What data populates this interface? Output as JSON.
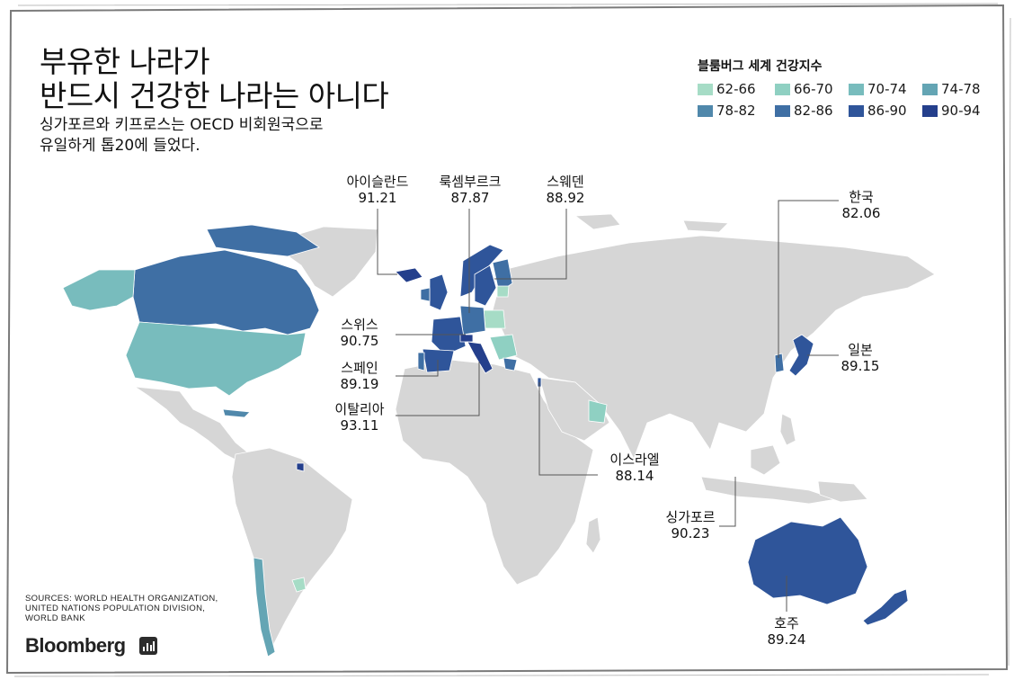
{
  "title_line1": "부유한 나라가",
  "title_line2": "반드시 건강한 나라는 아니다",
  "subtitle_line1": "싱가포르와 키프로스는 OECD 비회원국으로",
  "subtitle_line2": "유일하게 톱20에 들었다.",
  "legend": {
    "title": "블룸버그 세계 건강지수",
    "items": [
      {
        "label": "62-66",
        "color": "#a6dcc6"
      },
      {
        "label": "66-70",
        "color": "#8fd0c2"
      },
      {
        "label": "70-74",
        "color": "#78bcbd"
      },
      {
        "label": "74-78",
        "color": "#64a5b4"
      },
      {
        "label": "78-82",
        "color": "#5088ab"
      },
      {
        "label": "82-86",
        "color": "#3f6fa4"
      },
      {
        "label": "86-90",
        "color": "#2f559a"
      },
      {
        "label": "90-94",
        "color": "#243f8c"
      }
    ]
  },
  "callouts": {
    "iceland": {
      "name": "아이슬란드",
      "value": "91.21"
    },
    "luxembourg": {
      "name": "룩셈부르크",
      "value": "87.87"
    },
    "sweden": {
      "name": "스웨덴",
      "value": "88.92"
    },
    "korea": {
      "name": "한국",
      "value": "82.06"
    },
    "switzerland": {
      "name": "스위스",
      "value": "90.75"
    },
    "spain": {
      "name": "스페인",
      "value": "89.19"
    },
    "italy": {
      "name": "이탈리아",
      "value": "93.11"
    },
    "japan": {
      "name": "일본",
      "value": "89.15"
    },
    "israel": {
      "name": "이스라엘",
      "value": "88.14"
    },
    "singapore": {
      "name": "싱가포르",
      "value": "90.23"
    },
    "australia": {
      "name": "호주",
      "value": "89.24"
    }
  },
  "sources": [
    "SOURCES: WORLD HEALTH ORGANIZATION,",
    "UNITED NATIONS POPULATION DIVISION,",
    "WORLD BANK"
  ],
  "brand": "Bloomberg",
  "colors": {
    "land": "#d6d6d6",
    "border": "#ffffff",
    "frame": "#7a7a7a",
    "leader": "#555555"
  },
  "icons": [
    "bloomberg-logo-icon"
  ]
}
